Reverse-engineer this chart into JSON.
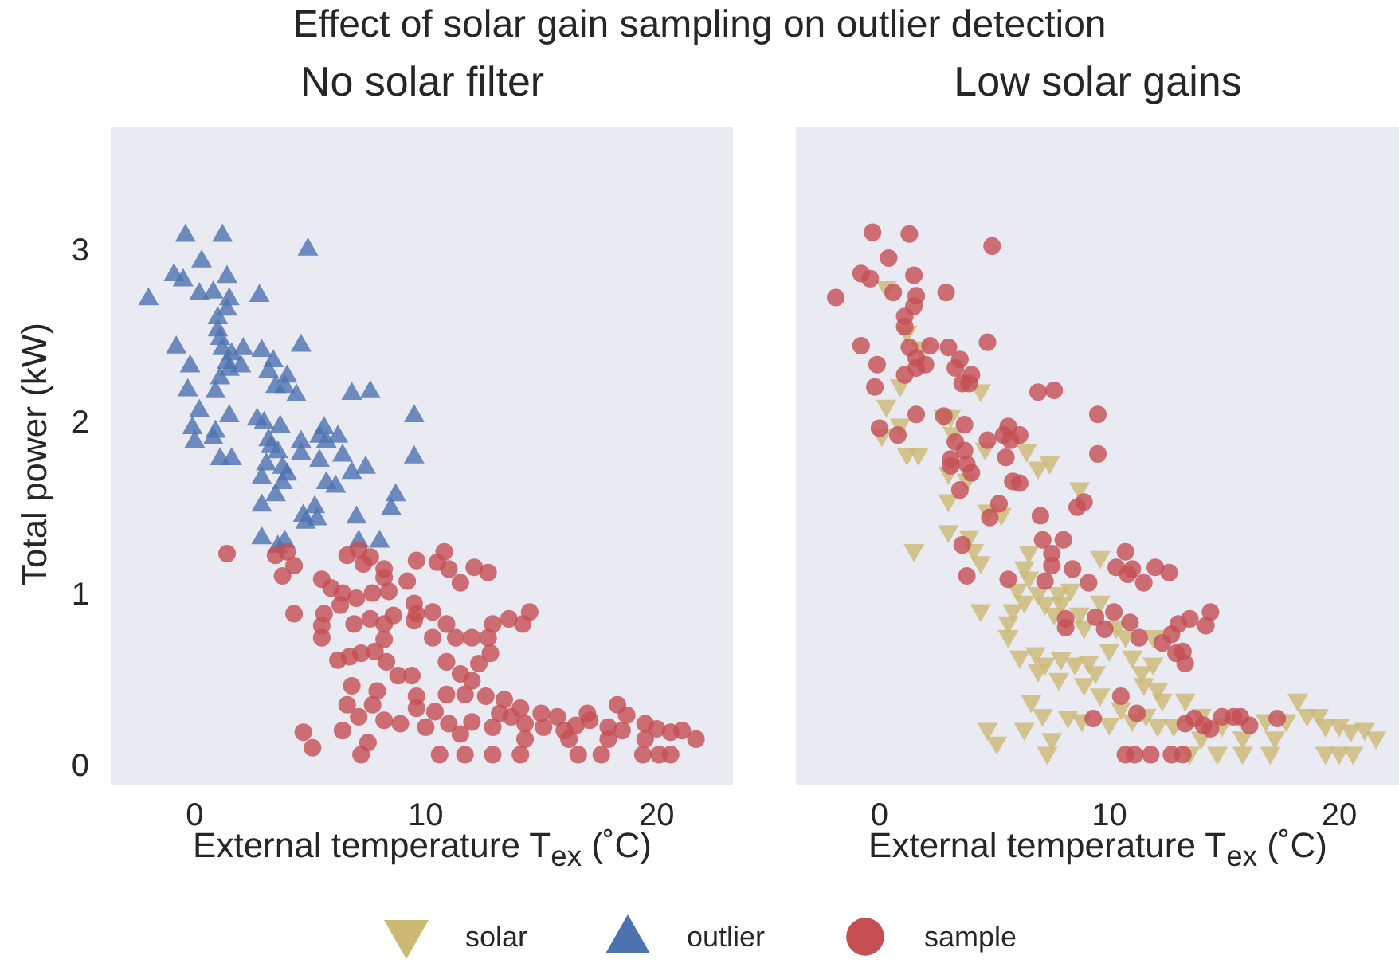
{
  "chart_data": [
    {
      "type": "scatter",
      "title": "Effect of solar gain sampling on outlier detection",
      "subtitle": "No solar filter",
      "xlabel": "External temperature T$_{ex}$ (˚C)",
      "ylabel": "Total power (kW)",
      "xlim": [
        -3.6,
        23.3
      ],
      "xticks": [
        0,
        10,
        20
      ],
      "ylim": [
        -0.11,
        3.71
      ],
      "yticks": [
        0,
        1,
        2,
        3
      ],
      "legend": "bottom",
      "series": [
        {
          "name": "outlier",
          "color": "#4c72b0",
          "marker": "triangle",
          "x": [
            -0.4,
            1.2,
            4.9,
            0.3,
            -0.9,
            -0.5,
            1.4,
            -2.0,
            0.2,
            0.8,
            1.5,
            2.8,
            1.4,
            1.0,
            1.0,
            1.1,
            -0.8,
            1.2,
            2.1,
            2.9,
            4.6,
            1.6,
            1.4,
            2.0,
            3.4,
            3.2,
            -0.2,
            1.5,
            4.0,
            1.1,
            3.5,
            3.9,
            -0.3,
            0.9,
            4.4,
            6.8,
            7.6,
            0.2,
            1.5,
            2.7,
            3.0,
            3.7,
            9.5,
            -0.1,
            0.9,
            0.0,
            0.8,
            3.2,
            4.6,
            5.6,
            5.4,
            6.2,
            5.7,
            3.3,
            3.6,
            4.6,
            6.4,
            9.5,
            1.1,
            1.6,
            5.4,
            3.1,
            3.8,
            6.8,
            7.4,
            2.9,
            4.0,
            3.8,
            5.7,
            6.1,
            3.5,
            8.7,
            8.5,
            2.9,
            5.2,
            4.7,
            5.3,
            4.8,
            7.0,
            2.9,
            3.6,
            3.9,
            7.1,
            8.0
          ],
          "values": [
            3.09,
            3.09,
            3.01,
            2.94,
            2.86,
            2.83,
            2.85,
            2.72,
            2.75,
            2.76,
            2.72,
            2.74,
            2.66,
            2.61,
            2.54,
            2.49,
            2.44,
            2.43,
            2.43,
            2.42,
            2.45,
            2.4,
            2.35,
            2.33,
            2.36,
            2.3,
            2.33,
            2.31,
            2.27,
            2.26,
            2.21,
            2.21,
            2.19,
            2.18,
            2.16,
            2.17,
            2.18,
            2.07,
            2.04,
            2.02,
            2.0,
            1.98,
            2.04,
            1.97,
            1.95,
            1.89,
            1.91,
            1.9,
            1.89,
            1.97,
            1.92,
            1.92,
            1.89,
            1.86,
            1.83,
            1.82,
            1.81,
            1.8,
            1.79,
            1.79,
            1.78,
            1.76,
            1.74,
            1.71,
            1.74,
            1.68,
            1.7,
            1.65,
            1.65,
            1.63,
            1.58,
            1.58,
            1.5,
            1.52,
            1.51,
            1.46,
            1.44,
            1.42,
            1.45,
            1.33,
            1.28,
            1.31,
            1.31,
            1.31
          ]
        },
        {
          "name": "sample",
          "color": "#c44e52",
          "marker": "circle",
          "x": [
            1.4,
            3.5,
            4.0,
            4.3,
            3.8,
            4.3,
            4.7,
            5.1,
            6.4,
            7.2,
            7.5,
            8.2,
            7.1,
            6.6,
            6.8,
            7.9,
            7.7,
            6.2,
            6.7,
            7.2,
            7.8,
            8.3,
            8.8,
            9.4,
            5.5,
            5.5,
            5.6,
            6.9,
            7.6,
            8.2,
            8.6,
            8.2,
            9.5,
            9.6,
            9.5,
            10.3,
            10.3,
            10.9,
            11.3,
            12.0,
            12.9,
            13.6,
            14.2,
            14.5,
            12.7,
            12.8,
            12.3,
            10.9,
            11.5,
            12.0,
            11.7,
            10.9,
            9.6,
            9.6,
            8.9,
            10.0,
            12.6,
            13.4,
            14.1,
            8.2,
            8.2,
            9.2,
            9.6,
            10.5,
            10.8,
            11.0,
            11.5,
            12.1,
            12.7,
            6.6,
            7.1,
            7.6,
            7.3,
            5.5,
            5.9,
            6.4,
            7.7,
            8.4,
            6.3,
            7.0,
            10.4,
            11.0,
            12.0,
            12.9,
            13.7,
            14.3,
            15.1,
            15.7,
            16.5,
            17.1,
            17.9,
            18.3,
            18.7,
            19.5,
            20.0,
            20.6,
            21.1,
            21.7,
            19.5,
            17.9,
            16.2,
            14.3,
            10.6,
            11.7,
            12.9,
            14.1,
            16.6,
            17.6,
            19.4,
            20.1,
            20.6,
            11.5,
            13.2,
            15.0,
            16.0,
            17.0,
            18.5
          ],
          "values": [
            1.23,
            1.22,
            1.24,
            1.16,
            1.1,
            0.88,
            0.19,
            0.1,
            0.2,
            0.06,
            0.13,
            0.26,
            0.28,
            0.35,
            0.46,
            0.43,
            0.35,
            0.61,
            0.63,
            0.65,
            0.66,
            0.6,
            0.52,
            0.52,
            0.74,
            0.81,
            0.88,
            0.82,
            0.85,
            0.82,
            0.87,
            0.73,
            0.84,
            0.88,
            0.94,
            0.89,
            0.74,
            0.82,
            0.74,
            0.74,
            0.82,
            0.85,
            0.82,
            0.89,
            0.74,
            0.65,
            0.59,
            0.6,
            0.53,
            0.49,
            0.41,
            0.41,
            0.4,
            0.33,
            0.24,
            0.22,
            0.4,
            0.38,
            0.33,
            1.14,
            1.09,
            1.07,
            1.19,
            1.18,
            1.24,
            1.14,
            1.06,
            1.15,
            1.12,
            1.22,
            1.25,
            1.21,
            1.17,
            1.08,
            1.03,
            1.0,
            1.0,
            1.01,
            0.93,
            0.97,
            0.31,
            0.24,
            0.25,
            0.22,
            0.28,
            0.24,
            0.22,
            0.28,
            0.23,
            0.26,
            0.22,
            0.35,
            0.29,
            0.24,
            0.21,
            0.19,
            0.2,
            0.15,
            0.15,
            0.15,
            0.15,
            0.15,
            0.06,
            0.06,
            0.06,
            0.06,
            0.06,
            0.06,
            0.06,
            0.06,
            0.06,
            0.18,
            0.3,
            0.3,
            0.2,
            0.3,
            0.2
          ]
        }
      ]
    },
    {
      "type": "scatter",
      "subtitle": "Low solar gains",
      "xlabel": "External temperature T$_{ex}$ (˚C)",
      "xlim": [
        -3.6,
        22.6
      ],
      "xticks": [
        0,
        10,
        20
      ],
      "ylim": [
        -0.11,
        3.71
      ],
      "tick_labels": "x",
      "legend": "bottom",
      "series": [
        {
          "name": "solar",
          "color": "#ccb974",
          "marker": "triangle-down",
          "x": [
            0.3,
            1.2,
            1.8,
            0.9,
            4.4,
            0.3,
            0.9,
            0.1,
            1.2,
            1.7,
            2.8,
            3.1,
            3.2,
            4.6,
            6.4,
            6.9,
            7.4,
            3.0,
            3.8,
            8.7,
            3.0,
            4.7,
            5.3,
            3.0,
            3.9,
            1.5,
            4.1,
            4.4,
            6.5,
            9.6,
            4.4,
            5.6,
            5.6,
            5.8,
            6.3,
            6.5,
            6.0,
            6.3,
            6.9,
            7.2,
            7.8,
            7.9,
            8.3,
            7.6,
            8.7,
            8.9,
            9.6,
            10.3,
            10.7,
            11.9,
            6.1,
            6.8,
            7.2,
            6.9,
            7.9,
            7.8,
            8.5,
            9.1,
            9.4,
            8.9,
            10.0,
            11.0,
            11.4,
            11.9,
            11.5,
            12.1,
            6.6,
            7.1,
            8.2,
            8.8,
            6.3,
            4.7,
            5.1,
            7.5,
            7.3,
            9.6,
            10.0,
            10.5,
            11.6,
            12.3,
            12.8,
            13.3,
            14.0,
            14.0,
            14.9,
            15.6,
            15.8,
            16.8,
            17.2,
            17.7,
            18.2,
            18.6,
            19.1,
            19.4,
            20.0,
            20.5,
            21.1,
            21.6,
            13.5,
            14.7,
            15.8,
            17.0,
            19.4,
            20.0,
            20.6,
            11.0,
            12.1
          ],
          "values": [
            2.77,
            2.51,
            2.42,
            2.2,
            2.17,
            2.08,
            1.97,
            1.91,
            1.8,
            1.8,
            2.02,
            2.02,
            1.92,
            1.83,
            1.82,
            1.72,
            1.75,
            1.69,
            1.65,
            1.6,
            1.53,
            1.47,
            1.45,
            1.35,
            1.32,
            1.24,
            1.24,
            1.17,
            1.23,
            1.2,
            0.89,
            0.82,
            0.74,
            0.89,
            1.14,
            1.08,
            1.01,
            0.94,
            0.99,
            0.93,
            0.99,
            0.93,
            1.01,
            0.87,
            0.87,
            0.79,
            0.94,
            0.79,
            0.74,
            0.74,
            0.62,
            0.64,
            0.58,
            0.54,
            0.61,
            0.49,
            0.58,
            0.59,
            0.53,
            0.46,
            0.66,
            0.62,
            0.53,
            0.58,
            0.46,
            0.43,
            0.36,
            0.28,
            0.27,
            0.25,
            0.2,
            0.2,
            0.12,
            0.14,
            0.06,
            0.4,
            0.23,
            0.32,
            0.28,
            0.37,
            0.22,
            0.37,
            0.28,
            0.15,
            0.22,
            null,
            0.15,
            0.25,
            0.15,
            0.25,
            0.37,
            0.28,
            0.28,
            0.22,
            0.22,
            0.19,
            0.2,
            0.15,
            0.06,
            0.06,
            0.06,
            0.06,
            0.06,
            0.06,
            0.06,
            0.25,
            0.22
          ]
        },
        {
          "name": "sample",
          "color": "#c44e52",
          "marker": "circle",
          "x": [
            -0.3,
            1.3,
            4.9,
            0.4,
            -0.8,
            -0.4,
            1.5,
            -1.9,
            0.6,
            1.6,
            2.9,
            1.5,
            1.1,
            1.1,
            -0.8,
            1.3,
            2.2,
            3.0,
            4.7,
            1.6,
            2.0,
            3.5,
            3.3,
            -0.1,
            1.6,
            4.0,
            1.1,
            3.6,
            3.9,
            -0.2,
            6.9,
            7.6,
            1.6,
            2.8,
            3.7,
            9.5,
            0.0,
            0.8,
            3.3,
            4.7,
            5.6,
            5.4,
            6.1,
            5.7,
            3.7,
            5.5,
            9.5,
            3.1,
            3.8,
            3.1,
            4.0,
            5.8,
            6.1,
            3.5,
            8.9,
            8.6,
            5.2,
            4.8,
            7.0,
            7.1,
            8.0,
            3.6,
            7.5,
            7.5,
            8.4,
            7.2,
            5.6,
            3.8,
            9.1,
            10.7,
            10.3,
            11.0,
            10.8,
            12.0,
            12.6,
            11.5,
            8.1,
            8.1,
            9.4,
            10.2,
            9.8,
            10.9,
            11.3,
            12.3,
            12.7,
            13.0,
            13.5,
            14.4,
            14.2,
            12.9,
            13.2,
            13.3,
            10.5,
            9.3,
            11.2,
            13.3,
            13.7,
            14.1,
            14.4,
            14.9,
            15.4,
            15.7,
            16.1,
            17.3,
            10.7,
            11.1,
            11.8,
            12.7,
            13.2
          ],
          "values": [
            3.1,
            3.09,
            3.02,
            2.95,
            2.86,
            2.83,
            2.85,
            2.72,
            2.75,
            2.73,
            2.75,
            2.67,
            2.61,
            2.55,
            2.44,
            2.43,
            2.44,
            2.43,
            2.46,
            2.37,
            2.33,
            2.36,
            2.31,
            2.33,
            2.31,
            2.27,
            2.27,
            2.22,
            2.22,
            2.2,
            2.17,
            2.18,
            2.04,
            2.03,
            1.98,
            2.04,
            1.96,
            1.92,
            1.88,
            1.89,
            1.97,
            1.92,
            1.92,
            1.89,
            1.83,
            1.79,
            1.81,
            1.78,
            1.75,
            1.74,
            1.7,
            1.65,
            1.64,
            1.6,
            1.53,
            1.5,
            1.52,
            1.44,
            1.45,
            1.31,
            1.31,
            1.28,
            1.23,
            1.16,
            1.14,
            1.07,
            1.08,
            1.1,
            1.06,
            1.24,
            1.15,
            1.14,
            1.11,
            1.15,
            1.12,
            1.06,
            0.85,
            0.8,
            0.86,
            0.89,
            0.79,
            0.83,
            0.74,
            0.71,
            0.76,
            0.82,
            0.85,
            0.89,
            0.81,
            0.65,
            0.66,
            0.59,
            0.4,
            0.27,
            0.3,
            0.24,
            0.27,
            0.23,
            0.21,
            0.28,
            0.28,
            0.28,
            0.23,
            0.27,
            0.06,
            0.06,
            0.06,
            0.06,
            0.06
          ]
        }
      ]
    }
  ]
}
